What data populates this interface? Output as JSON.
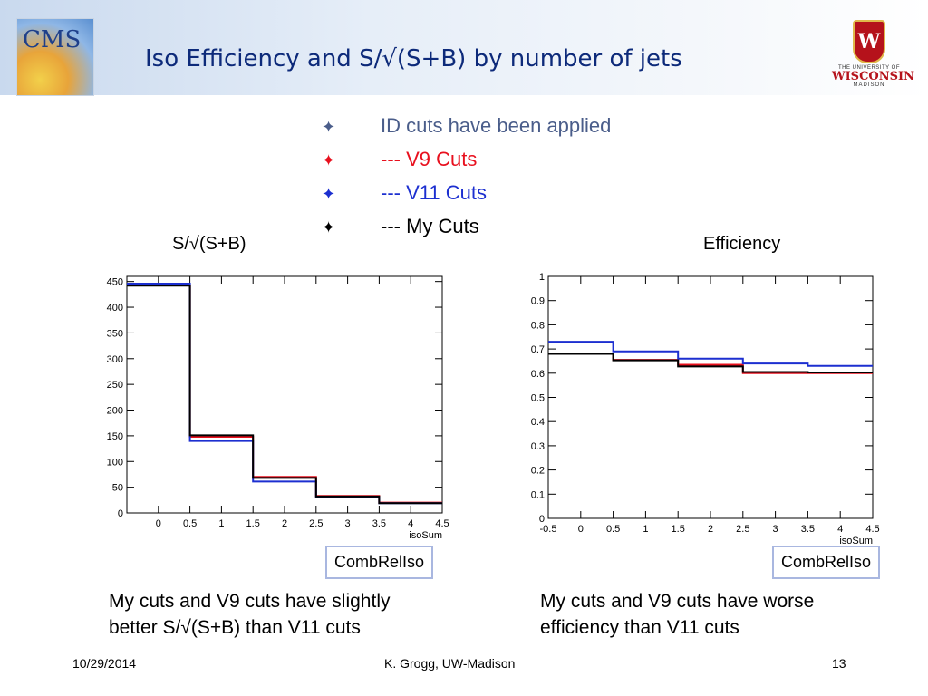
{
  "header": {
    "title": "Iso Efficiency and  S/√(S+B) by number of jets",
    "cms_logo_text": "CMS",
    "uw_logo": {
      "crest": "W",
      "small": "THE UNIVERSITY OF",
      "name": "WISCONSIN",
      "city": "MADISON"
    }
  },
  "bullets": [
    {
      "text": "ID cuts have been applied",
      "color": "#4a5d8a"
    },
    {
      "text": "--- V9 Cuts",
      "color": "#e8101e"
    },
    {
      "text": "--- V11 Cuts",
      "color": "#1c2fd0"
    },
    {
      "text": "--- My Cuts",
      "color": "#000000"
    }
  ],
  "bullet_icon": "four-point-star-icon",
  "left_panel": {
    "title": "S/√(S+B)",
    "label_box": "CombRelIso",
    "caption": [
      "My cuts and V9 cuts have slightly",
      "better S/√(S+B) than V11 cuts"
    ]
  },
  "right_panel": {
    "title": "Efficiency",
    "label_box": "CombRelIso",
    "caption": [
      "My cuts and V9 cuts have worse",
      "efficiency than V11 cuts"
    ]
  },
  "footer": {
    "date": "10/29/2014",
    "author": "K. Grogg, UW-Madison",
    "page": "13"
  },
  "chart_data": [
    {
      "type": "step",
      "xlabel": "isoSum",
      "ylabel": "",
      "xlim": [
        -0.5,
        4.5
      ],
      "ylim": [
        0,
        460
      ],
      "xticks": [
        "0",
        "0.5",
        "1",
        "1.5",
        "2",
        "2.5",
        "3",
        "3.5",
        "4",
        "4.5"
      ],
      "yticks": [
        "0",
        "50",
        "100",
        "150",
        "200",
        "250",
        "300",
        "350",
        "400",
        "450"
      ],
      "bin_edges": [
        -0.5,
        0.5,
        1.5,
        2.5,
        3.5,
        4.5
      ],
      "series": [
        {
          "name": "V9 Cuts",
          "color": "#e8101e",
          "values": [
            443,
            148,
            70,
            33,
            20
          ]
        },
        {
          "name": "V11 Cuts",
          "color": "#1c2fd0",
          "values": [
            446,
            140,
            61,
            30,
            19
          ]
        },
        {
          "name": "My Cuts",
          "color": "#000000",
          "values": [
            442,
            151,
            68,
            32,
            19
          ]
        }
      ]
    },
    {
      "type": "step",
      "xlabel": "isoSum",
      "ylabel": "",
      "xlim": [
        -0.5,
        4.5
      ],
      "ylim": [
        0,
        1
      ],
      "xticks": [
        "-0.5",
        "0",
        "0.5",
        "1",
        "1.5",
        "2",
        "2.5",
        "3",
        "3.5",
        "4",
        "4.5"
      ],
      "yticks": [
        "0",
        "0.1",
        "0.2",
        "0.3",
        "0.4",
        "0.5",
        "0.6",
        "0.7",
        "0.8",
        "0.9",
        "1"
      ],
      "bin_edges": [
        -0.5,
        0.5,
        1.5,
        2.5,
        3.5,
        4.5
      ],
      "series": [
        {
          "name": "V9 Cuts",
          "color": "#e8101e",
          "values": [
            0.68,
            0.655,
            0.635,
            0.6,
            0.6
          ]
        },
        {
          "name": "V11 Cuts",
          "color": "#1c2fd0",
          "values": [
            0.73,
            0.69,
            0.66,
            0.64,
            0.63
          ]
        },
        {
          "name": "My Cuts",
          "color": "#000000",
          "values": [
            0.68,
            0.653,
            0.628,
            0.605,
            0.603
          ]
        }
      ]
    }
  ]
}
